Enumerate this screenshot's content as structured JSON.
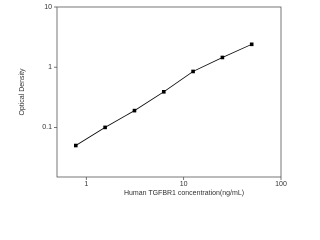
{
  "chart_data": {
    "type": "line",
    "x_label": "Human TGFBR1 concentration(ng/mL)",
    "y_label": "Optical Density",
    "x": [
      0.78,
      1.56,
      3.125,
      6.25,
      12.5,
      25,
      50
    ],
    "series": [
      {
        "color": "#000000",
        "values": [
          0.05,
          0.1,
          0.19,
          0.39,
          0.85,
          1.45,
          2.4
        ]
      }
    ],
    "xlim": [
      0.5,
      100
    ],
    "ylim": [
      0.015,
      10
    ],
    "xticks": [
      1,
      10,
      100
    ],
    "yticks": [
      0.1,
      1,
      10
    ],
    "xlog": true,
    "ylog": true,
    "grid": false,
    "markers": "square"
  }
}
